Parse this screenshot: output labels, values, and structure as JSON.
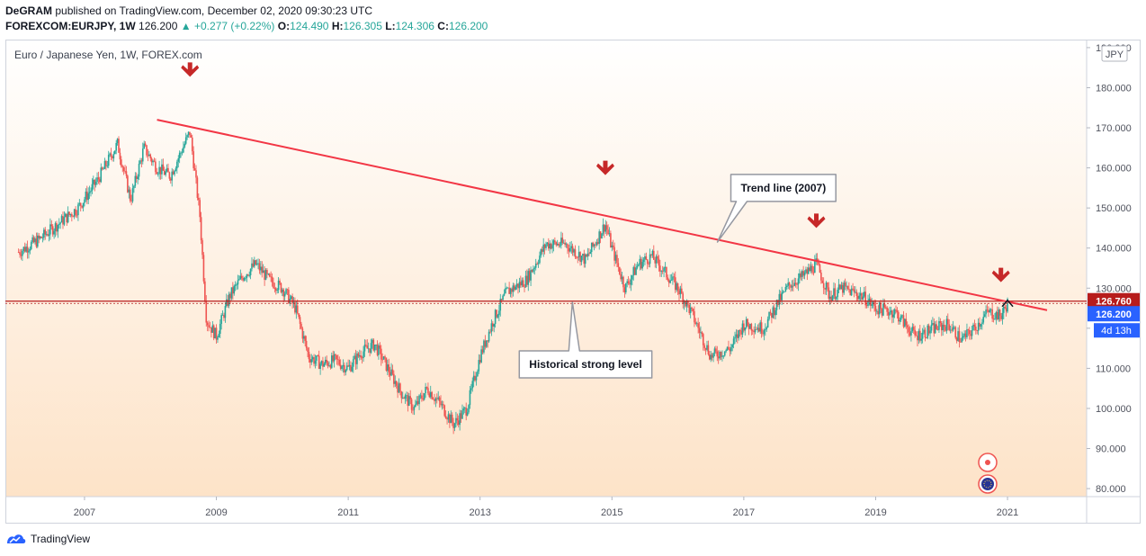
{
  "header": {
    "author": "DeGRAM",
    "published_text": "published on TradingView.com, December 02, 2020 09:30:23 UTC",
    "symbol": "FOREXCOM:EURJPY, 1W",
    "last": "126.200",
    "change": "+0.277 (+0.22%)",
    "o_label": "O:",
    "o": "124.490",
    "h_label": "H:",
    "h": "126.305",
    "l_label": "L:",
    "l": "124.306",
    "c_label": "C:",
    "c": "126.200"
  },
  "footer": {
    "brand": "TradingView"
  },
  "colors": {
    "up": "#26a69a",
    "down": "#ef5350",
    "trendline": "#f23645",
    "level": "#b71c1c",
    "marker": "#c62828",
    "price_badge_blue": "#2962ff"
  },
  "chart_data": {
    "type": "candlestick",
    "title": "Euro / Japanese Yen, 1W, FOREX.com",
    "currency_label": "JPY",
    "x_ticks": [
      "2007",
      "2009",
      "2011",
      "2013",
      "2015",
      "2017",
      "2019",
      "2021"
    ],
    "y_ticks": [
      "190.000",
      "180.000",
      "170.000",
      "160.000",
      "150.000",
      "140.000",
      "130.000",
      "120.000",
      "110.000",
      "100.000",
      "90.000",
      "80.000"
    ],
    "ylim": [
      78,
      192
    ],
    "xlim": [
      2005.8,
      2022.2
    ],
    "price_level": {
      "value": 126.76,
      "label": "126.760"
    },
    "last_price": {
      "value": 126.2,
      "label": "126.200",
      "countdown": "4d 13h"
    },
    "trend_line": {
      "from": [
        2008.1,
        172.0
      ],
      "to": [
        2021.6,
        124.5
      ]
    },
    "annotations": [
      {
        "text": "Trend line (2007)",
        "x": 2017.6,
        "y": 155.0,
        "pointer": [
          2016.6,
          141.5
        ]
      },
      {
        "text": "Historical strong level",
        "x": 2014.6,
        "y": 111.0,
        "pointer": [
          2014.4,
          126.5
        ]
      }
    ],
    "markers": [
      {
        "x": 2008.6,
        "y": 184.5
      },
      {
        "x": 2014.9,
        "y": 160.0
      },
      {
        "x": 2018.1,
        "y": 146.8
      },
      {
        "x": 2020.9,
        "y": 133.3
      }
    ],
    "price_path": [
      [
        2006.0,
        139
      ],
      [
        2006.3,
        142
      ],
      [
        2006.6,
        146
      ],
      [
        2006.9,
        150
      ],
      [
        2007.2,
        157
      ],
      [
        2007.5,
        166
      ],
      [
        2007.7,
        152
      ],
      [
        2007.9,
        165
      ],
      [
        2008.1,
        160
      ],
      [
        2008.3,
        158
      ],
      [
        2008.6,
        169
      ],
      [
        2008.75,
        148
      ],
      [
        2008.85,
        122
      ],
      [
        2009.0,
        118
      ],
      [
        2009.2,
        128
      ],
      [
        2009.4,
        133
      ],
      [
        2009.6,
        136
      ],
      [
        2009.8,
        132
      ],
      [
        2010.0,
        130
      ],
      [
        2010.2,
        125
      ],
      [
        2010.4,
        113
      ],
      [
        2010.6,
        111
      ],
      [
        2010.8,
        112
      ],
      [
        2011.0,
        110
      ],
      [
        2011.2,
        114
      ],
      [
        2011.4,
        116
      ],
      [
        2011.6,
        110
      ],
      [
        2011.8,
        104
      ],
      [
        2012.0,
        100
      ],
      [
        2012.2,
        105
      ],
      [
        2012.4,
        101
      ],
      [
        2012.6,
        96
      ],
      [
        2012.8,
        100
      ],
      [
        2013.0,
        113
      ],
      [
        2013.2,
        122
      ],
      [
        2013.4,
        129
      ],
      [
        2013.7,
        132
      ],
      [
        2014.0,
        141
      ],
      [
        2014.3,
        141
      ],
      [
        2014.6,
        137
      ],
      [
        2014.9,
        146
      ],
      [
        2015.0,
        140
      ],
      [
        2015.2,
        130
      ],
      [
        2015.4,
        136
      ],
      [
        2015.6,
        138
      ],
      [
        2015.8,
        134
      ],
      [
        2016.0,
        130
      ],
      [
        2016.2,
        124
      ],
      [
        2016.5,
        113
      ],
      [
        2016.8,
        115
      ],
      [
        2017.0,
        121
      ],
      [
        2017.3,
        120
      ],
      [
        2017.5,
        126
      ],
      [
        2017.7,
        131
      ],
      [
        2017.9,
        133
      ],
      [
        2018.1,
        136
      ],
      [
        2018.3,
        128
      ],
      [
        2018.5,
        130
      ],
      [
        2018.8,
        128
      ],
      [
        2019.0,
        125
      ],
      [
        2019.3,
        124
      ],
      [
        2019.6,
        118
      ],
      [
        2019.9,
        120
      ],
      [
        2020.1,
        121
      ],
      [
        2020.3,
        117
      ],
      [
        2020.5,
        120
      ],
      [
        2020.7,
        124
      ],
      [
        2020.9,
        123
      ],
      [
        2021.0,
        126.2
      ]
    ]
  }
}
